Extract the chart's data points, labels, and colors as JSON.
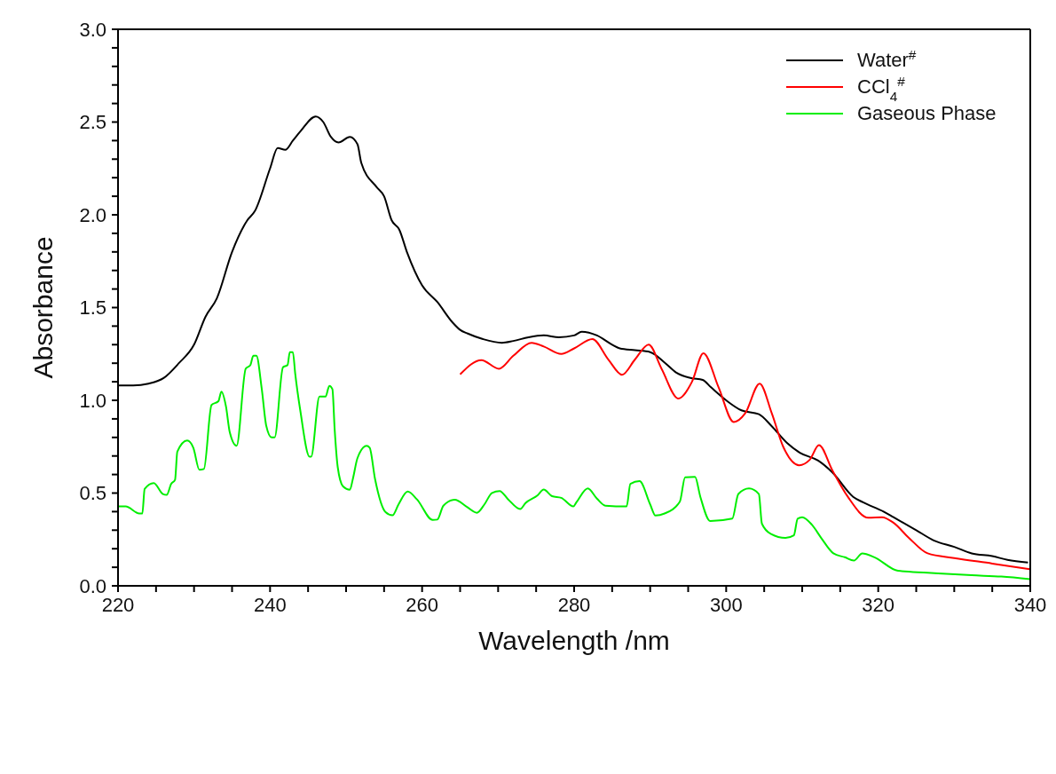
{
  "chart_data": {
    "type": "line",
    "xlabel": "Wavelength /nm",
    "ylabel": "Absorbance",
    "xlim": [
      220,
      340
    ],
    "ylim": [
      0,
      3.0
    ],
    "xticks": [
      220,
      {
        "value": 225,
        "label": null
      },
      {
        "value": 230,
        "label": null
      },
      {
        "value": 235,
        "label": null
      },
      240,
      {
        "value": 245,
        "label": null
      },
      {
        "value": 250,
        "label": null
      },
      {
        "value": 255,
        "label": null
      },
      260,
      {
        "value": 265,
        "label": null
      },
      {
        "value": 270,
        "label": null
      },
      {
        "value": 275,
        "label": null
      },
      280,
      {
        "value": 285,
        "label": null
      },
      {
        "value": 290,
        "label": null
      },
      {
        "value": 295,
        "label": null
      },
      300,
      {
        "value": 305,
        "label": null
      },
      {
        "value": 310,
        "label": null
      },
      {
        "value": 315,
        "label": null
      },
      320,
      {
        "value": 325,
        "label": null
      },
      {
        "value": 330,
        "label": null
      },
      {
        "value": 335,
        "label": null
      },
      340
    ],
    "yticks": [
      {
        "value": 0,
        "label": "0.0"
      },
      {
        "value": 0.1,
        "label": null
      },
      {
        "value": 0.2,
        "label": null
      },
      {
        "value": 0.3,
        "label": null
      },
      {
        "value": 0.4,
        "label": null
      },
      {
        "value": 0.5,
        "label": "0.5"
      },
      {
        "value": 0.6,
        "label": null
      },
      {
        "value": 0.7,
        "label": null
      },
      {
        "value": 0.8,
        "label": null
      },
      {
        "value": 0.9,
        "label": null
      },
      {
        "value": 1.0,
        "label": "1.0"
      },
      {
        "value": 1.1,
        "label": null
      },
      {
        "value": 1.2,
        "label": null
      },
      {
        "value": 1.3,
        "label": null
      },
      {
        "value": 1.4,
        "label": null
      },
      {
        "value": 1.5,
        "label": "1.5"
      },
      {
        "value": 1.6,
        "label": null
      },
      {
        "value": 1.7,
        "label": null
      },
      {
        "value": 1.8,
        "label": null
      },
      {
        "value": 1.9,
        "label": null
      },
      {
        "value": 2.0,
        "label": "2.0"
      },
      {
        "value": 2.1,
        "label": null
      },
      {
        "value": 2.2,
        "label": null
      },
      {
        "value": 2.3,
        "label": null
      },
      {
        "value": 2.4,
        "label": null
      },
      {
        "value": 2.5,
        "label": "2.5"
      },
      {
        "value": 2.6,
        "label": null
      },
      {
        "value": 2.7,
        "label": null
      },
      {
        "value": 2.8,
        "label": null
      },
      {
        "value": 2.9,
        "label": null
      },
      {
        "value": 3.0,
        "label": "3.0"
      }
    ],
    "legend": "top right",
    "marker": "none",
    "line_style": "solid",
    "series": [
      {
        "name": "Water$^{#}$",
        "color": "#000000",
        "x": [
          220,
          222,
          224,
          226,
          228,
          230,
          231.5,
          233,
          235,
          237,
          238,
          240,
          241,
          242,
          243,
          244,
          246,
          247,
          248,
          249,
          250.5,
          251.5,
          252,
          254,
          255,
          256,
          257,
          258,
          260,
          262,
          264,
          265,
          266,
          268,
          270.5,
          272,
          274,
          276,
          278,
          280,
          281,
          283,
          285,
          286,
          288,
          290,
          292,
          293.4,
          295.4,
          296.9,
          298,
          300,
          302,
          304.3,
          306,
          308,
          309.7,
          312.1,
          314,
          316.7,
          318,
          320.7,
          322,
          325,
          327.3,
          330,
          332.3,
          335,
          337,
          339.7
        ],
        "values": [
          1.08,
          1.08,
          1.09,
          1.12,
          1.2,
          1.3,
          1.45,
          1.55,
          1.8,
          1.97,
          2.02,
          2.25,
          2.36,
          2.35,
          2.4,
          2.45,
          2.53,
          2.5,
          2.42,
          2.39,
          2.42,
          2.38,
          2.28,
          2.15,
          2.1,
          1.97,
          1.92,
          1.8,
          1.62,
          1.53,
          1.42,
          1.38,
          1.36,
          1.33,
          1.31,
          1.32,
          1.34,
          1.35,
          1.34,
          1.35,
          1.37,
          1.35,
          1.3,
          1.28,
          1.27,
          1.26,
          1.2,
          1.15,
          1.12,
          1.11,
          1.07,
          1.0,
          0.946,
          0.925,
          0.86,
          0.77,
          0.717,
          0.675,
          0.61,
          0.48,
          0.45,
          0.4,
          0.37,
          0.3,
          0.245,
          0.21,
          0.175,
          0.16,
          0.14,
          0.126
        ]
      },
      {
        "name": "CCl$_{4}$$^{#}$",
        "color": "#ff0000",
        "x": [
          265,
          267.8,
          270.1,
          272,
          274.4,
          276,
          278.3,
          280,
          282.4,
          284.5,
          286.3,
          288,
          289.8,
          291.5,
          293.7,
          295.5,
          297,
          299,
          301,
          302.5,
          304.4,
          306,
          307.5,
          309.6,
          311,
          312.2,
          314,
          316,
          318.7,
          320.5,
          322,
          324,
          326.5,
          330,
          335,
          340
        ],
        "values": [
          1.14,
          1.217,
          1.17,
          1.24,
          1.31,
          1.29,
          1.25,
          1.28,
          1.33,
          1.22,
          1.138,
          1.22,
          1.3,
          1.17,
          1.01,
          1.1,
          1.254,
          1.07,
          0.883,
          0.93,
          1.09,
          0.93,
          0.75,
          0.65,
          0.68,
          0.758,
          0.62,
          0.48,
          0.367,
          0.37,
          0.34,
          0.26,
          0.175,
          0.15,
          0.12,
          0.089
        ]
      },
      {
        "name": "Gaseous Phase",
        "color": "#00ee00",
        "x": [
          220,
          221,
          222.8,
          223.2,
          223.5,
          224.7,
          225.9,
          226.4,
          227,
          227.5,
          227.8,
          229.1,
          229.9,
          230.7,
          231.3,
          232.3,
          233.2,
          233.6,
          234.2,
          234.7,
          235.6,
          236.8,
          237.4,
          237.8,
          238.2,
          238.9,
          239.5,
          240.2,
          240.6,
          241.7,
          242.3,
          242.6,
          243,
          243.3,
          244,
          245.2,
          245.4,
          246.5,
          247.3,
          247.8,
          248.2,
          248.5,
          248.9,
          249.6,
          250.5,
          250.9,
          251.5,
          252.7,
          253.1,
          253.8,
          255.2,
          256.1,
          256.9,
          258.1,
          259.3,
          261.4,
          262,
          262.8,
          264.3,
          265.9,
          267.2,
          268.2,
          269.2,
          270.2,
          271.3,
          272.9,
          273.6,
          275.2,
          276,
          277.1,
          278.3,
          279.9,
          280.3,
          281.8,
          283,
          284.1,
          286.9,
          287.4,
          288.6,
          290,
          290.7,
          291.9,
          293.9,
          294.6,
          295.9,
          296.6,
          297.9,
          300.8,
          301.6,
          303,
          304.3,
          304.7,
          305.9,
          307.8,
          308.9,
          309.4,
          310,
          311.3,
          312.5,
          314.1,
          315.6,
          316.8,
          317.9,
          319.5,
          322.6,
          326.5,
          332.3,
          336.2,
          340
        ],
        "values": [
          0.428,
          0.428,
          0.39,
          0.39,
          0.522,
          0.554,
          0.495,
          0.49,
          0.55,
          0.571,
          0.723,
          0.783,
          0.745,
          0.626,
          0.63,
          0.975,
          0.995,
          1.047,
          0.967,
          0.828,
          0.755,
          1.171,
          1.189,
          1.24,
          1.24,
          1.064,
          0.862,
          0.8,
          0.8,
          1.178,
          1.19,
          1.26,
          1.26,
          1.147,
          0.939,
          0.696,
          0.696,
          1.02,
          1.02,
          1.078,
          1.06,
          0.842,
          0.64,
          0.536,
          0.518,
          0.578,
          0.689,
          0.755,
          0.745,
          0.578,
          0.397,
          0.38,
          0.439,
          0.508,
          0.467,
          0.355,
          0.357,
          0.432,
          0.464,
          0.425,
          0.394,
          0.439,
          0.501,
          0.511,
          0.467,
          0.414,
          0.446,
          0.488,
          0.519,
          0.483,
          0.474,
          0.428,
          0.45,
          0.525,
          0.47,
          0.432,
          0.428,
          0.55,
          0.564,
          0.439,
          0.379,
          0.39,
          0.453,
          0.585,
          0.587,
          0.48,
          0.349,
          0.362,
          0.495,
          0.525,
          0.495,
          0.335,
          0.279,
          0.258,
          0.272,
          0.362,
          0.37,
          0.328,
          0.258,
          0.175,
          0.154,
          0.136,
          0.175,
          0.154,
          0.081,
          0.071,
          0.057,
          0.05,
          0.036
        ]
      }
    ]
  }
}
